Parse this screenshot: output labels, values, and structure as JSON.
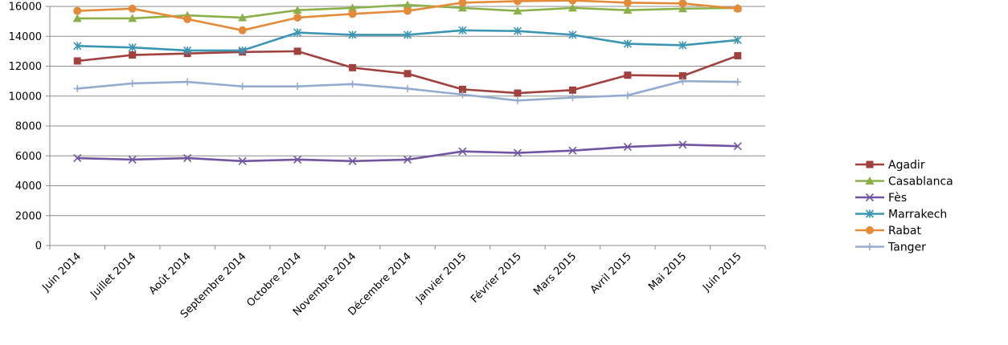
{
  "chart_data": {
    "type": "line",
    "title": "",
    "xlabel": "",
    "ylabel": "",
    "ylim": [
      0,
      16000
    ],
    "yticks": [
      0,
      2000,
      4000,
      6000,
      8000,
      10000,
      12000,
      14000,
      16000
    ],
    "grid": "horizontal",
    "legend_position": "right",
    "categories": [
      "Juin 2014",
      "Juillet 2014",
      "Août 2014",
      "Septembre 2014",
      "Octobre 2014",
      "Novembre 2014",
      "Décembre 2014",
      "Janvier 2015",
      "Février 2015",
      "Mars 2015",
      "Avril 2015",
      "Mai 2015",
      "Juin 2015"
    ],
    "series": [
      {
        "name": "Agadir",
        "color": "#A0413E",
        "marker": "square",
        "values": [
          12350,
          12750,
          12850,
          12950,
          13000,
          11900,
          11500,
          10450,
          10200,
          10400,
          11400,
          11350,
          12700
        ]
      },
      {
        "name": "Casablanca",
        "color": "#8BB04A",
        "marker": "triangle",
        "values": [
          15200,
          15200,
          15400,
          15250,
          15750,
          15900,
          16100,
          15900,
          15700,
          15900,
          15750,
          15850,
          15900
        ]
      },
      {
        "name": "Fès",
        "color": "#7155A0",
        "marker": "x",
        "values": [
          5850,
          5750,
          5850,
          5650,
          5750,
          5650,
          5750,
          6300,
          6200,
          6350,
          6600,
          6750,
          6650
        ]
      },
      {
        "name": "Marrakech",
        "color": "#3C96B2",
        "marker": "star",
        "values": [
          13350,
          13250,
          13050,
          13050,
          14250,
          14100,
          14100,
          14400,
          14350,
          14100,
          13500,
          13400,
          13750
        ]
      },
      {
        "name": "Rabat",
        "color": "#E38B39",
        "marker": "circle",
        "values": [
          15700,
          15850,
          15150,
          14400,
          15250,
          15500,
          15700,
          16250,
          16350,
          16400,
          16250,
          16200,
          15850
        ]
      },
      {
        "name": "Tanger",
        "color": "#93ABCF",
        "marker": "plus",
        "values": [
          10500,
          10850,
          10950,
          10650,
          10650,
          10800,
          10500,
          10100,
          9700,
          9900,
          10050,
          11000,
          10950
        ]
      }
    ]
  }
}
